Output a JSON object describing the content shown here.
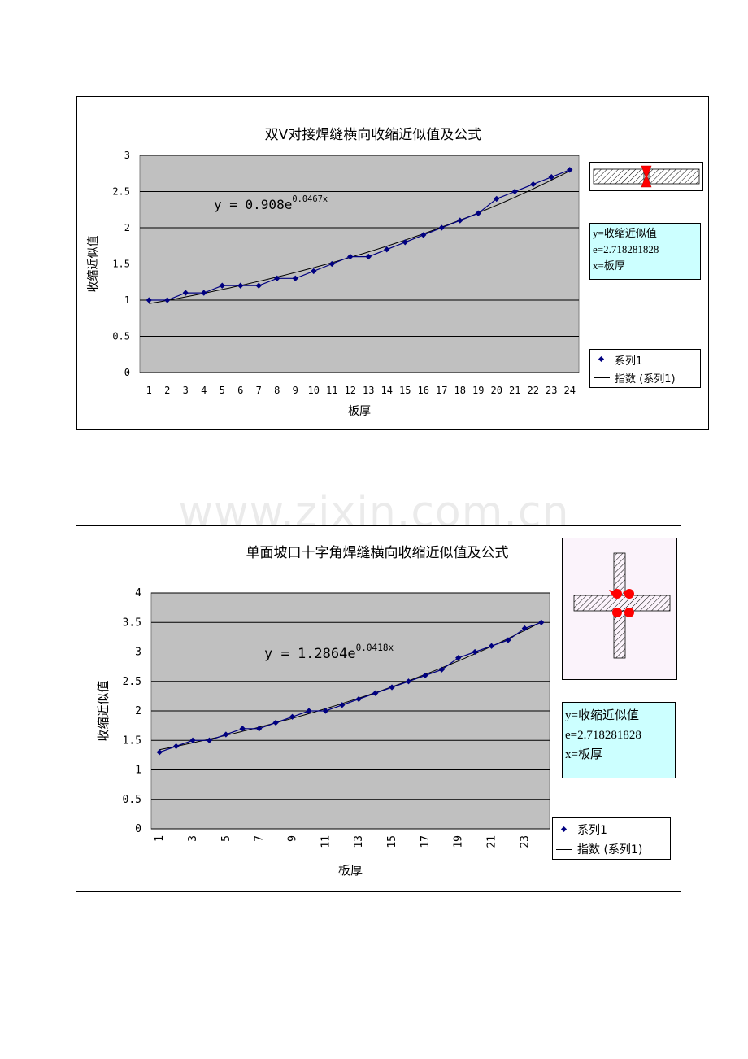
{
  "watermark": "www.zixin.com.cn",
  "chart_data": [
    {
      "type": "line",
      "title": "双V对接焊缝横向收缩近似值及公式",
      "xlabel": "板厚",
      "ylabel": "收缩近似值",
      "categories": [
        "1",
        "2",
        "3",
        "4",
        "5",
        "6",
        "7",
        "8",
        "9",
        "10",
        "11",
        "12",
        "13",
        "14",
        "15",
        "16",
        "17",
        "18",
        "19",
        "20",
        "21",
        "22",
        "23",
        "24"
      ],
      "series": [
        {
          "name": "系列1",
          "values": [
            1.0,
            1.0,
            1.1,
            1.1,
            1.2,
            1.2,
            1.2,
            1.3,
            1.3,
            1.4,
            1.5,
            1.6,
            1.6,
            1.7,
            1.8,
            1.9,
            2.0,
            2.1,
            2.2,
            2.4,
            2.5,
            2.6,
            2.7,
            2.8
          ]
        }
      ],
      "trendline": {
        "name": "指数 (系列1)",
        "type": "exponential",
        "a": 0.908,
        "b": 0.0467
      },
      "equation": {
        "base": "y = 0.908e",
        "exponent": "0.0467x"
      },
      "ylim": [
        0,
        3
      ],
      "yticks": [
        0,
        0.5,
        1,
        1.5,
        2,
        2.5,
        3
      ],
      "yticklabels": [
        "0",
        "0.5",
        "1",
        "1.5",
        "2",
        "2.5",
        "3"
      ],
      "grid": true,
      "legend": [
        "系列1",
        "指数 (系列1)"
      ],
      "info": [
        "y=收缩近似值",
        "e=2.718281828",
        "x=板厚"
      ],
      "plot_bg": "#c0c0c0",
      "series_color": "#000080",
      "info_bg": "#ccffff"
    },
    {
      "type": "line",
      "title": "单面坡口十字角焊缝横向收缩近似值及公式",
      "xlabel": "板厚",
      "ylabel": "收缩近似值",
      "categories": [
        "1",
        "2",
        "3",
        "4",
        "5",
        "6",
        "7",
        "8",
        "9",
        "10",
        "11",
        "12",
        "13",
        "14",
        "15",
        "16",
        "17",
        "18",
        "19",
        "20",
        "21",
        "22",
        "23",
        "24"
      ],
      "xticklabels": [
        "1",
        "3",
        "5",
        "7",
        "9",
        "11",
        "13",
        "15",
        "17",
        "19",
        "21",
        "23"
      ],
      "series": [
        {
          "name": "系列1",
          "values": [
            1.3,
            1.4,
            1.5,
            1.5,
            1.6,
            1.7,
            1.7,
            1.8,
            1.9,
            2.0,
            2.0,
            2.1,
            2.2,
            2.3,
            2.4,
            2.5,
            2.6,
            2.7,
            2.9,
            3.0,
            3.1,
            3.2,
            3.4,
            3.5
          ]
        }
      ],
      "trendline": {
        "name": "指数 (系列1)",
        "type": "exponential",
        "a": 1.2864,
        "b": 0.0418
      },
      "equation": {
        "base": "y = 1.2864e",
        "exponent": "0.0418x"
      },
      "ylim": [
        0,
        4
      ],
      "yticks": [
        0,
        0.5,
        1,
        1.5,
        2,
        2.5,
        3,
        3.5,
        4
      ],
      "yticklabels": [
        "0",
        "0.5",
        "1",
        "1.5",
        "2",
        "2.5",
        "3",
        "3.5",
        "4"
      ],
      "grid": true,
      "legend": [
        "系列1",
        "指数 (系列1)"
      ],
      "info": [
        "y=收缩近似值",
        "e=2.718281828",
        "x=板厚"
      ],
      "plot_bg": "#c0c0c0",
      "series_color": "#000080",
      "info_bg": "#ccffff"
    }
  ]
}
